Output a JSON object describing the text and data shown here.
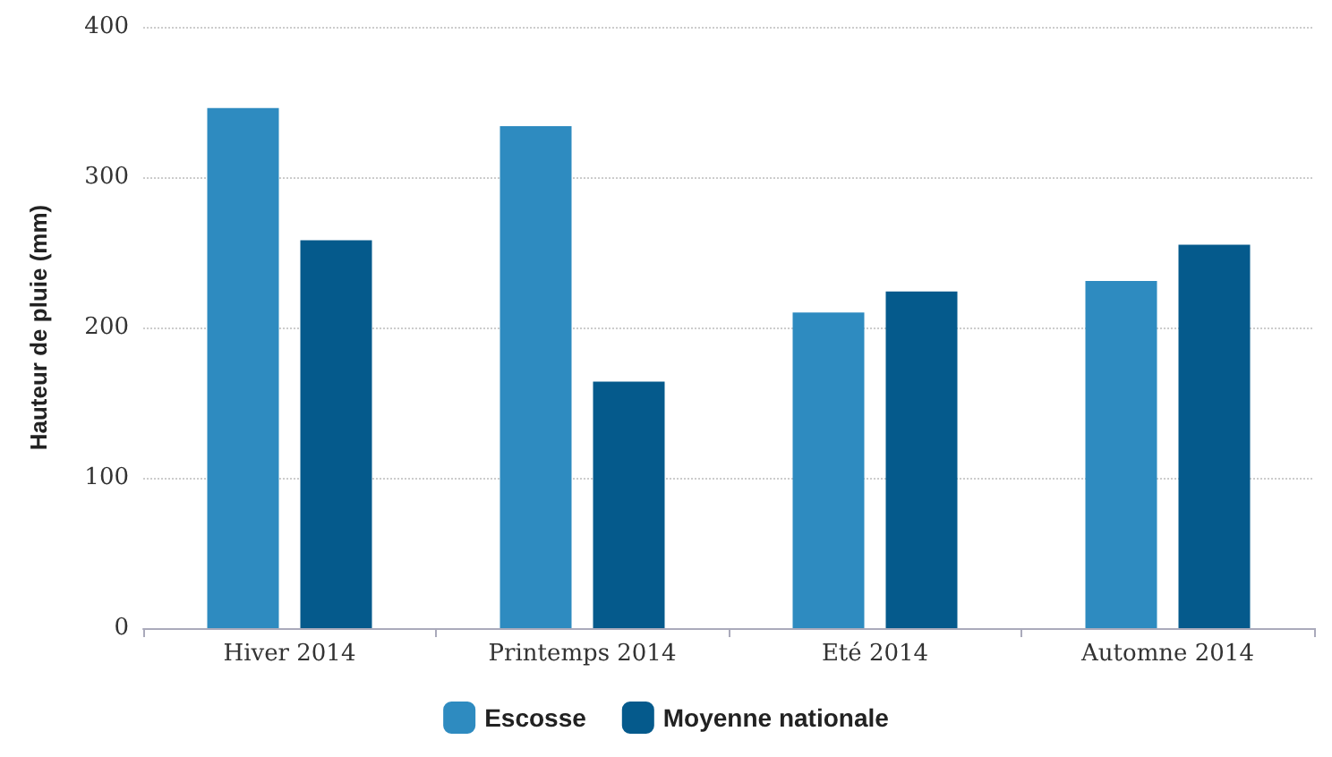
{
  "chart_data": {
    "type": "bar",
    "ylabel": "Hauteur de pluie (mm)",
    "categories": [
      "Hiver 2014",
      "Printemps 2014",
      "Eté 2014",
      "Automne 2014"
    ],
    "series": [
      {
        "name": "Escosse",
        "color": "#2e8bc0",
        "values": [
          346,
          334,
          210,
          231
        ]
      },
      {
        "name": "Moyenne nationale",
        "color": "#055a8c",
        "values": [
          258,
          164,
          224,
          255
        ]
      }
    ],
    "ylim": [
      0,
      400
    ],
    "yticks": [
      0,
      100,
      200,
      300,
      400
    ],
    "grid": "y",
    "legend": "bottom"
  }
}
